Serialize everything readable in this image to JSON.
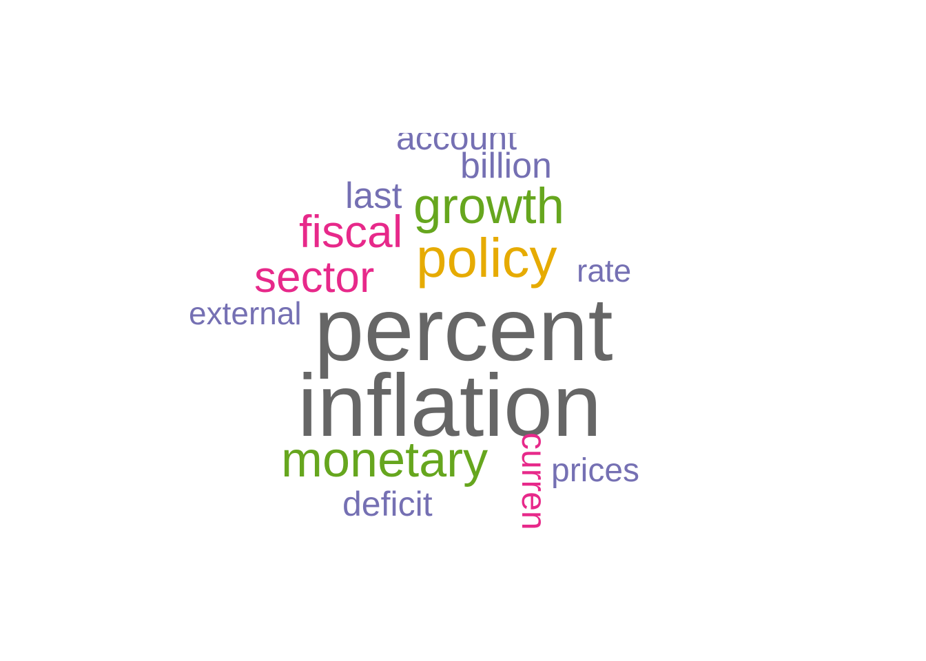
{
  "words": {
    "account": "account",
    "billion": "billion",
    "last": "last",
    "growth": "growth",
    "fiscal": "fiscal",
    "policy": "policy",
    "sector": "sector",
    "rate": "rate",
    "external": "external",
    "percent": "percent",
    "inflation": "inflation",
    "monetary": "monetary",
    "current": "current",
    "prices": "prices",
    "deficit": "deficit"
  },
  "colors": {
    "gray": "#666666",
    "purple": "#7570b3",
    "pink": "#e7298a",
    "green": "#66a61e",
    "gold": "#e6ab02"
  }
}
